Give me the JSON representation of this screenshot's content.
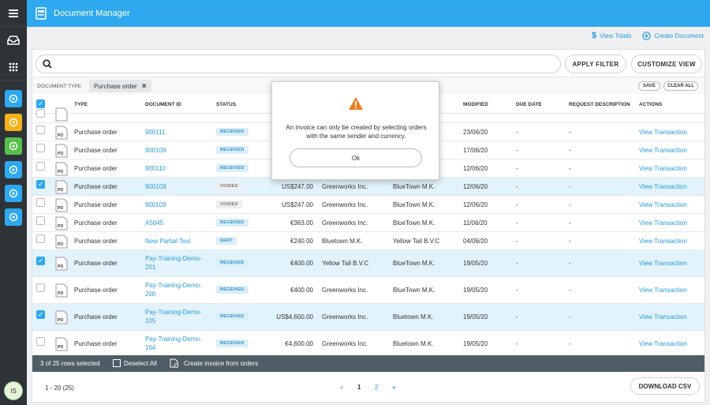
{
  "app": {
    "title": "Document Manager"
  },
  "user": {
    "initials": "IS"
  },
  "sidebar": {
    "apps": [
      {
        "icon": "gauge-icon",
        "color": "#2ea8ee"
      },
      {
        "icon": "puzzle-icon",
        "color": "#f2b11b"
      },
      {
        "icon": "document-add-icon",
        "color": "#58c04a"
      },
      {
        "icon": "lifebuoy-icon",
        "color": "#2ea8ee"
      },
      {
        "icon": "inbox-tray-icon",
        "color": "#2ea8ee"
      },
      {
        "icon": "globe-gear-icon",
        "color": "#2ea8ee"
      }
    ]
  },
  "subbar": {
    "view_totals": "View Totals",
    "create_document": "Create Document"
  },
  "search": {
    "placeholder": ""
  },
  "buttons": {
    "apply_filter": "APPLY FILTER",
    "customize_view": "CUSTOMIZE VIEW",
    "save": "SAVE",
    "clear_all": "CLEAR ALL",
    "download_csv": "DOWNLOAD CSV"
  },
  "filter": {
    "label": "DOCUMENT TYPE",
    "chip": "Purchase order"
  },
  "table": {
    "headers": {
      "type": "TYPE",
      "document_id": "DOCUMENT ID",
      "status": "STATUS",
      "modified": "MODIFIED",
      "due_date": "DUE DATE",
      "request_description": "REQUEST DESCRIPTION",
      "actions": "ACTIONS"
    },
    "doc_icon_label": "PO",
    "rows": [
      {
        "type": "",
        "id": "",
        "status": "",
        "amount": "",
        "sender": "",
        "recipient": "",
        "modified": "",
        "due": "",
        "desc": "",
        "action": "",
        "selected": false,
        "partial": true
      },
      {
        "type": "Purchase order",
        "id": "900111",
        "status": "RECEIVED",
        "amount": "",
        "sender": "",
        "recipient": "",
        "modified": "23/06/20",
        "due": "-",
        "desc": "-",
        "action": "View Transaction",
        "selected": false
      },
      {
        "type": "Purchase order",
        "id": "900109",
        "status": "RECEIVED",
        "amount": "",
        "sender": "",
        "recipient": "",
        "modified": "17/06/20",
        "due": "-",
        "desc": "-",
        "action": "View Transaction",
        "selected": false
      },
      {
        "type": "Purchase order",
        "id": "900110",
        "status": "RECEIVED",
        "amount": "",
        "sender": "",
        "recipient": "",
        "modified": "12/06/20",
        "due": "-",
        "desc": "-",
        "action": "View Transaction",
        "selected": false
      },
      {
        "type": "Purchase order",
        "id": "900109",
        "status": "VOIDED",
        "amount": "US$247.00",
        "sender": "Greenworks Inc.",
        "recipient": "BlueTown M.K.",
        "modified": "12/06/20",
        "due": "-",
        "desc": "-",
        "action": "View Transaction",
        "selected": true
      },
      {
        "type": "Purchase order",
        "id": "900109",
        "status": "VOIDED",
        "amount": "US$247.00",
        "sender": "Greenworks Inc.",
        "recipient": "BlueTown M.K.",
        "modified": "12/06/20",
        "due": "-",
        "desc": "-",
        "action": "View Transaction",
        "selected": false
      },
      {
        "type": "Purchase order",
        "id": "A5045",
        "status": "RECEIVED",
        "amount": "€363.00",
        "sender": "Greenworks Inc.",
        "recipient": "BlueTown M.K.",
        "modified": "11/06/20",
        "due": "-",
        "desc": "-",
        "action": "View Transaction",
        "selected": false
      },
      {
        "type": "Purchase order",
        "id": "New Partial Test",
        "status": "SENT",
        "amount": "€240.00",
        "sender": "Bluetown M.K.",
        "recipient": "Yellow Tail B.V.C",
        "modified": "04/06/20",
        "due": "-",
        "desc": "-",
        "action": "View Transaction",
        "selected": false
      },
      {
        "type": "Purchase order",
        "id_line1": "Pay-Training-Demo-",
        "id_line2": "201",
        "status": "RECEIVED",
        "amount": "€400.00",
        "sender": "Yellow Tail B.V.C",
        "recipient": "BlueTown M.K.",
        "modified": "19/05/20",
        "due": "-",
        "desc": "-",
        "action": "View Transaction",
        "selected": true
      },
      {
        "type": "Purchase order",
        "id_line1": "Pay-Training-Demo-",
        "id_line2": "200",
        "status": "RECEIVED",
        "amount": "€400.00",
        "sender": "Greenworks Inc.",
        "recipient": "BlueTown M.K.",
        "modified": "19/05/20",
        "due": "-",
        "desc": "-",
        "action": "View Transaction",
        "selected": false
      },
      {
        "type": "Purchase order",
        "id_line1": "Pay-Training-Demo-",
        "id_line2": "105",
        "status": "RECEIVED",
        "amount": "US$4,600.00",
        "sender": "Greenworks Inc.",
        "recipient": "Bluetown M.K.",
        "modified": "19/05/20",
        "due": "-",
        "desc": "-",
        "action": "View Transaction",
        "selected": true
      },
      {
        "type": "Purchase order",
        "id_line1": "Pay-Training-Demo-",
        "id_line2": "104",
        "status": "RECEIVED",
        "amount": "€4,600.00",
        "sender": "Greenworks Inc.",
        "recipient": "Bluetown M.K.",
        "modified": "19/05/20",
        "due": "-",
        "desc": "-",
        "action": "View Transaction",
        "selected": false
      }
    ]
  },
  "footer": {
    "selected_text": "3 of 25 rows selected",
    "deselect_all": "Deselect All",
    "create_invoice": "Create invoice from orders"
  },
  "pagination": {
    "range": "1 - 20 (25)",
    "pages": [
      "1",
      "2"
    ],
    "current": "1",
    "prev": "«",
    "next": "»"
  },
  "modal": {
    "message": "An invoice can only be created by selecting orders with the same sender and currency.",
    "ok": "Ok"
  }
}
